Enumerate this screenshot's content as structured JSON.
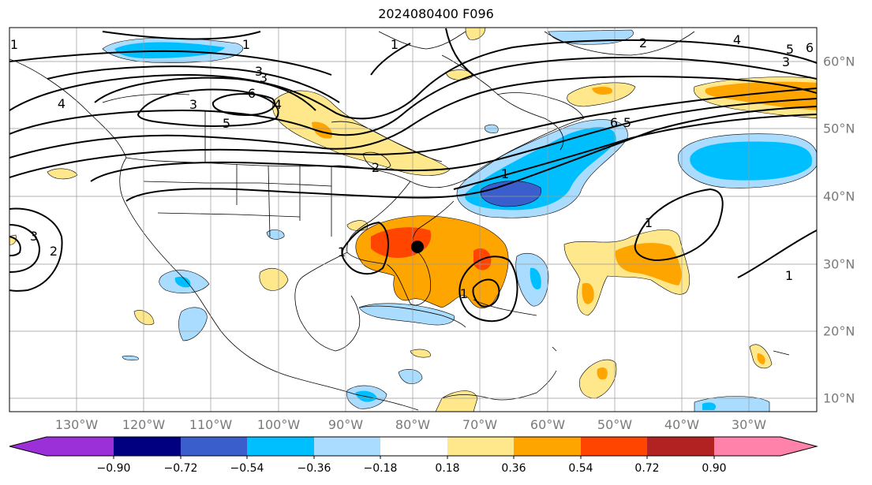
{
  "title": "2024080400 F096",
  "map": {
    "lon_ticks": [
      "130°W",
      "120°W",
      "110°W",
      "100°W",
      "90°W",
      "80°W",
      "70°W",
      "60°W",
      "50°W",
      "40°W",
      "30°W"
    ],
    "lat_ticks": [
      "60°N",
      "50°N",
      "40°N",
      "30°N",
      "20°N",
      "10°N"
    ],
    "marker": "storm-center-dot",
    "contour_labels": [
      "1",
      "3",
      "6",
      "5",
      "4",
      "2",
      "3",
      "4",
      "5",
      "6",
      "3",
      "1",
      "2",
      "6",
      "5",
      "1",
      "1",
      "1",
      "1",
      "2",
      "3",
      "1",
      "3",
      "4",
      "1"
    ]
  },
  "colorbar": {
    "ticks": [
      "−0.90",
      "−0.72",
      "−0.54",
      "−0.36",
      "−0.18",
      "0.18",
      "0.36",
      "0.54",
      "0.72",
      "0.90"
    ],
    "colors": {
      "lt_neg090": "#9b30d9",
      "neg090_072": "#000080",
      "neg072_054": "#3a5fcd",
      "neg054_036": "#00bfff",
      "neg036_018": "#aadcff",
      "neg018_018": "#ffffff",
      "p018_036": "#ffe88c",
      "p036_054": "#ffa500",
      "p054_072": "#ff4500",
      "p072_090": "#b22222",
      "gt_090": "#ff82ab"
    }
  }
}
